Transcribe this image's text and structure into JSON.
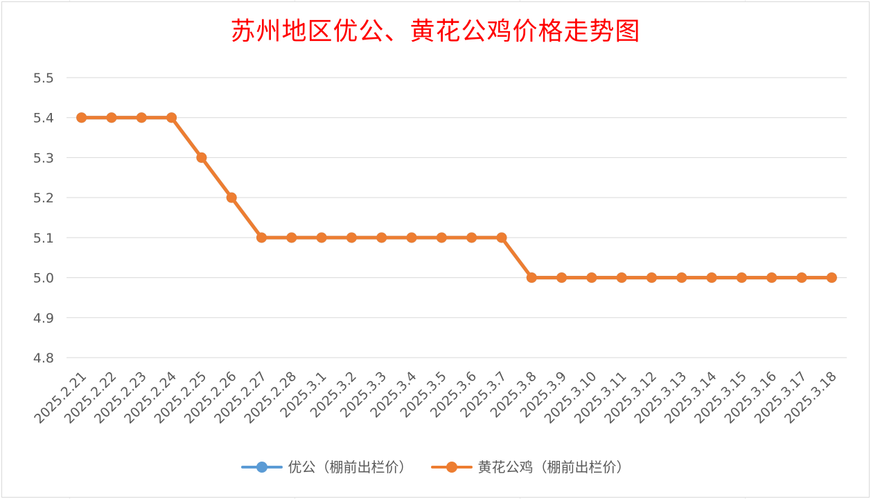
{
  "colors": {
    "title": "#ff0000",
    "series_youggong": "#5b9bd5",
    "series_huanghua": "#ed7d31",
    "grid": "#d9d9d9",
    "axis_text": "#595959"
  },
  "chart_data": {
    "type": "line",
    "title": "苏州地区优公、黄花公鸡价格走势图",
    "xlabel": "",
    "ylabel": "",
    "ylim": [
      4.8,
      5.5
    ],
    "yticks": [
      "5.5",
      "5.4",
      "5.3",
      "5.2",
      "5.1",
      "5.0",
      "4.9",
      "4.8"
    ],
    "grid": true,
    "legend_position": "bottom",
    "categories": [
      "2025.2.21",
      "2025.2.22",
      "2025.2.23",
      "2025.2.24",
      "2025.2.25",
      "2025.2.26",
      "2025.2.27",
      "2025.2.28",
      "2025.3.1",
      "2025.3.2",
      "2025.3.3",
      "2025.3.4",
      "2025.3.5",
      "2025.3.6",
      "2025.3.7",
      "2025.3.8",
      "2025.3.9",
      "2025.3.10",
      "2025.3.11",
      "2025.3.12",
      "2025.3.13",
      "2025.3.14",
      "2025.3.15",
      "2025.3.16",
      "2025.3.17",
      "2025.3.18"
    ],
    "series": [
      {
        "name": "优公（棚前出栏价）",
        "color": "#5b9bd5",
        "values": [
          5.4,
          5.4,
          5.4,
          5.4,
          5.3,
          5.2,
          5.1,
          5.1,
          5.1,
          5.1,
          5.1,
          5.1,
          5.1,
          5.1,
          5.1,
          5.0,
          5.0,
          5.0,
          5.0,
          5.0,
          5.0,
          5.0,
          5.0,
          5.0,
          5.0,
          5.0
        ]
      },
      {
        "name": "黄花公鸡（棚前出栏价）",
        "color": "#ed7d31",
        "values": [
          5.4,
          5.4,
          5.4,
          5.4,
          5.3,
          5.2,
          5.1,
          5.1,
          5.1,
          5.1,
          5.1,
          5.1,
          5.1,
          5.1,
          5.1,
          5.0,
          5.0,
          5.0,
          5.0,
          5.0,
          5.0,
          5.0,
          5.0,
          5.0,
          5.0,
          5.0
        ]
      }
    ]
  }
}
